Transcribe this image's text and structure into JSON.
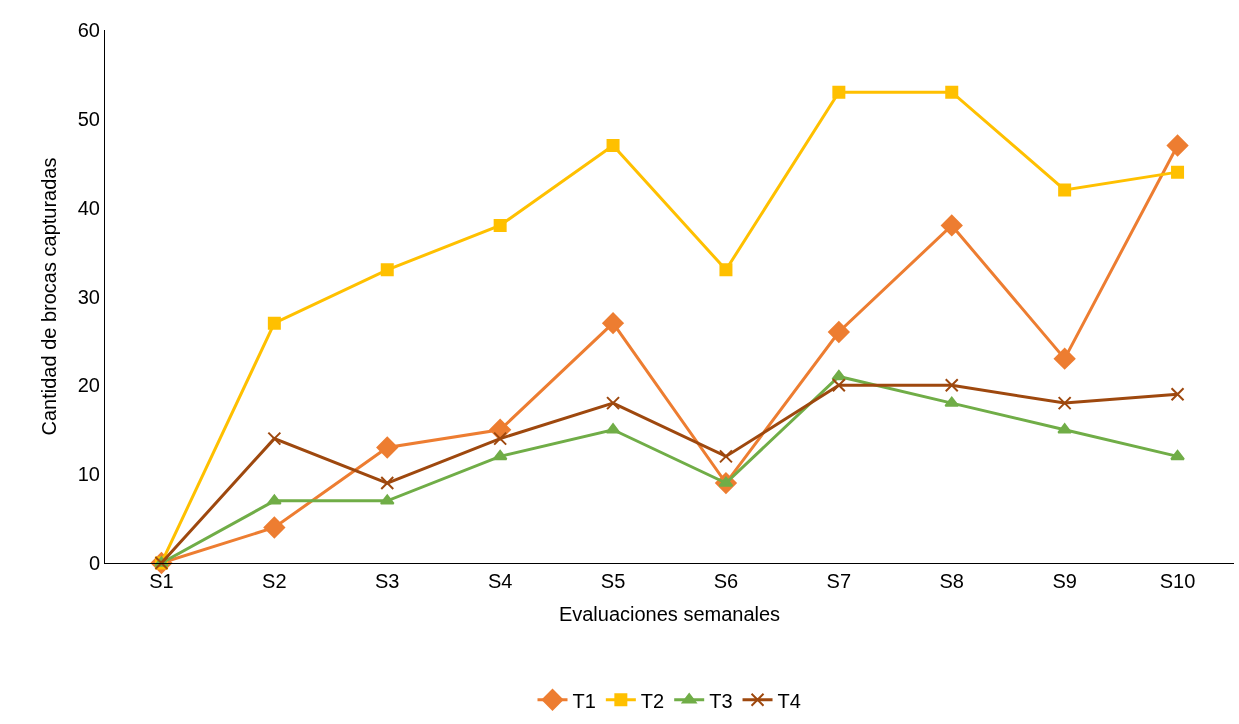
{
  "chart_data": {
    "type": "line",
    "xlabel": "Evaluaciones semanales",
    "ylabel": "Cantidad de brocas capturadas",
    "categories": [
      "S1",
      "S2",
      "S3",
      "S4",
      "S5",
      "S6",
      "S7",
      "S8",
      "S9",
      "S10"
    ],
    "series": [
      {
        "name": "T1",
        "color": "#ed7d31",
        "marker": "diamond",
        "values": [
          0,
          4,
          13,
          15,
          27,
          9,
          26,
          38,
          23,
          47
        ]
      },
      {
        "name": "T2",
        "color": "#ffc000",
        "marker": "square",
        "values": [
          0,
          27,
          33,
          38,
          47,
          33,
          53,
          53,
          42,
          44
        ]
      },
      {
        "name": "T3",
        "color": "#70ad47",
        "marker": "triangle",
        "values": [
          0,
          7,
          7,
          12,
          15,
          9,
          21,
          18,
          15,
          12
        ]
      },
      {
        "name": "T4",
        "color": "#9e480e",
        "marker": "cross",
        "values": [
          0,
          14,
          9,
          14,
          18,
          12,
          20,
          20,
          18,
          19
        ]
      }
    ],
    "ylim": [
      0,
      60
    ],
    "yticks": [
      0,
      10,
      20,
      30,
      40,
      50,
      60
    ],
    "legend": "bottom",
    "line_style": "solid"
  }
}
